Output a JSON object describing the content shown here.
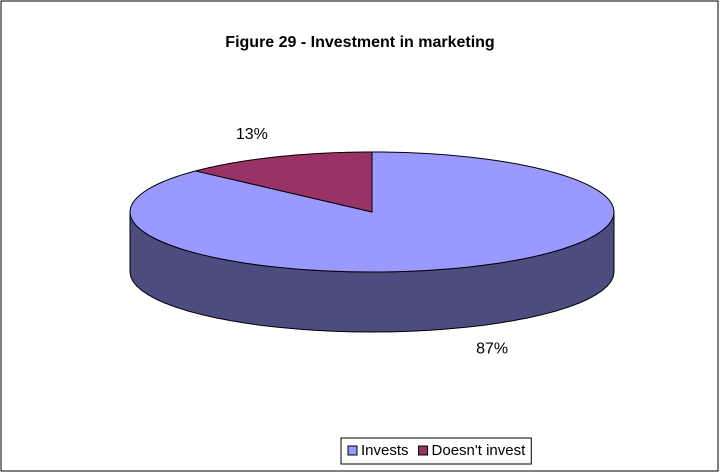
{
  "chart_data": {
    "type": "pie",
    "title": "Figure 29 - Investment in marketing",
    "categories": [
      "Invests",
      "Doesn't invest"
    ],
    "values": [
      87,
      13
    ],
    "value_labels": [
      "87%",
      "13%"
    ],
    "colors": [
      "#9999ff",
      "#993366"
    ],
    "legend": "bottom"
  }
}
